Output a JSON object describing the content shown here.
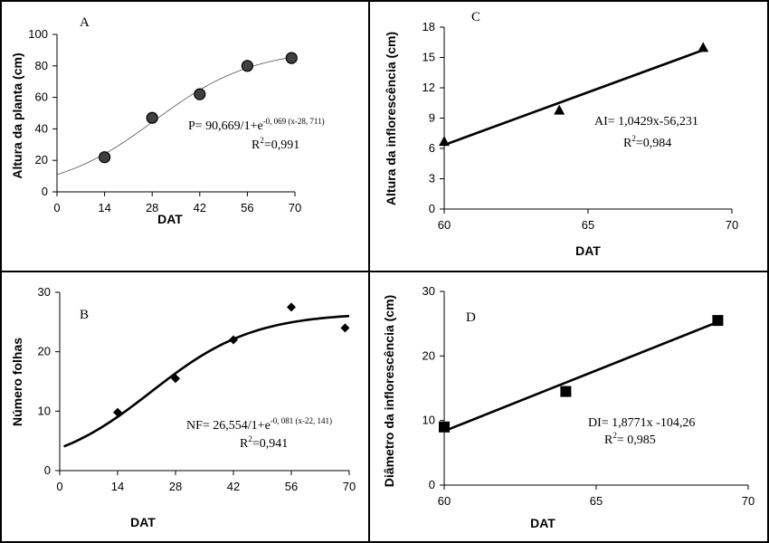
{
  "chart_data": [
    {
      "id": "A",
      "type": "scatter",
      "panel_label": "A",
      "xlabel": "DAT",
      "ylabel": "Altura da planta (cm)",
      "xlim": [
        0,
        70
      ],
      "ylim": [
        0,
        100
      ],
      "x_ticks": [
        "0",
        "14",
        "28",
        "42",
        "56",
        "70"
      ],
      "y_ticks": [
        "0",
        "20",
        "40",
        "60",
        "80",
        "100"
      ],
      "marker": "circle",
      "marker_color": "#404040",
      "fit_style": "thin",
      "points": [
        {
          "x": 14,
          "y": 22
        },
        {
          "x": 28,
          "y": 47
        },
        {
          "x": 42,
          "y": 62
        },
        {
          "x": 56,
          "y": 80
        },
        {
          "x": 69,
          "y": 85
        }
      ],
      "fit": {
        "kind": "logistic",
        "a": 90.669,
        "b": 0.069,
        "c": 28.711,
        "x_from": 0,
        "x_to": 70
      },
      "equation": {
        "main": "P= 90,669/1+e",
        "sup": "-0, 069 (x-28, 711)",
        "r2_prefix": "R",
        "r2_sup": "2",
        "r2_value": "=0,991"
      }
    },
    {
      "id": "C",
      "type": "scatter",
      "panel_label": "C",
      "xlabel": "DAT",
      "ylabel": "Altura da inflorescência (cm)",
      "xlim": [
        60,
        70
      ],
      "ylim": [
        0,
        18
      ],
      "x_ticks": [
        "60",
        "65",
        "70"
      ],
      "y_ticks": [
        "0",
        "3",
        "6",
        "9",
        "12",
        "15",
        "18"
      ],
      "marker": "triangle",
      "marker_color": "#000000",
      "fit_style": "thick",
      "points": [
        {
          "x": 60,
          "y": 6.7
        },
        {
          "x": 64,
          "y": 9.8
        },
        {
          "x": 69,
          "y": 16
        }
      ],
      "fit": {
        "kind": "linear",
        "slope": 1.0429,
        "intercept": -56.231,
        "x_from": 60,
        "x_to": 69
      },
      "equation": {
        "main": "AI= 1,0429x-56,231",
        "sup": "",
        "r2_prefix": "R",
        "r2_sup": "2",
        "r2_value": "=0,984"
      }
    },
    {
      "id": "B",
      "type": "scatter",
      "panel_label": "B",
      "xlabel": "DAT",
      "ylabel": "Número folhas",
      "xlim": [
        0,
        70
      ],
      "ylim": [
        0,
        30
      ],
      "x_ticks": [
        "0",
        "14",
        "28",
        "42",
        "56",
        "70"
      ],
      "y_ticks": [
        "0",
        "10",
        "20",
        "30"
      ],
      "marker": "diamond",
      "marker_color": "#000000",
      "fit_style": "thick",
      "points": [
        {
          "x": 14,
          "y": 9.8
        },
        {
          "x": 28,
          "y": 15.5
        },
        {
          "x": 42,
          "y": 22
        },
        {
          "x": 56,
          "y": 27.5
        },
        {
          "x": 69,
          "y": 24
        }
      ],
      "fit": {
        "kind": "logistic",
        "a": 26.554,
        "b": 0.081,
        "c": 22.141,
        "x_from": 1,
        "x_to": 70
      },
      "equation": {
        "main": "NF= 26,554/1+e",
        "sup": "-0, 081 (x-22, 141)",
        "r2_prefix": "R",
        "r2_sup": "2",
        "r2_value": "=0,941"
      }
    },
    {
      "id": "D",
      "type": "scatter",
      "panel_label": "D",
      "xlabel": "DAT",
      "ylabel": "Diâmetro da inflorescência (cm)",
      "xlim": [
        60,
        70
      ],
      "ylim": [
        0,
        30
      ],
      "x_ticks": [
        "60",
        "65",
        "70"
      ],
      "y_ticks": [
        "0",
        "10",
        "20",
        "30"
      ],
      "marker": "square",
      "marker_color": "#000000",
      "fit_style": "thick",
      "points": [
        {
          "x": 60,
          "y": 9
        },
        {
          "x": 64,
          "y": 14.5
        },
        {
          "x": 69,
          "y": 25.5
        }
      ],
      "fit": {
        "kind": "linear",
        "slope": 1.8771,
        "intercept": -104.26,
        "x_from": 60,
        "x_to": 69
      },
      "equation": {
        "main": "DI= 1,8771x -104,26",
        "sup": "",
        "r2_prefix": "R",
        "r2_sup": "2",
        "r2_value": "= 0,985"
      }
    }
  ]
}
